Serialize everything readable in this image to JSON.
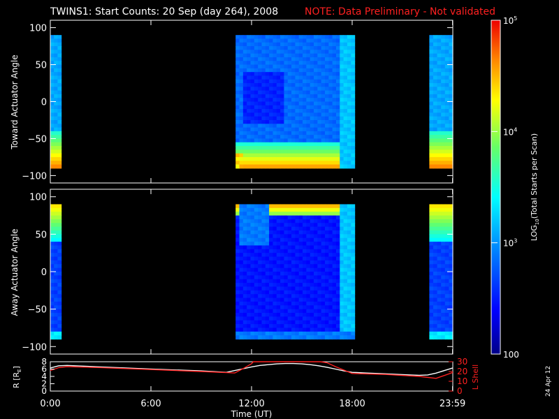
{
  "title": {
    "main": "TWINS1: Start Counts: 20 Sep (day 264), 2008",
    "note": "NOTE: Data Preliminary - Not validated"
  },
  "colors": {
    "note": "#ff2020",
    "lshell": "#ff2020",
    "r_line": "#ffffff",
    "axes": "#ffffff"
  },
  "footer_date": "24 Apr 12",
  "colorbar": {
    "label_prefix": "LOG",
    "label_sub": "10",
    "label_suffix": "(Total Starts per Scan)",
    "tick_labels": [
      "100",
      "10",
      "10",
      "10"
    ],
    "tick_exps": [
      "",
      "3",
      "4",
      "5"
    ],
    "range": [
      100,
      100000
    ],
    "scale": "log"
  },
  "chart_data": [
    {
      "type": "heatmap",
      "ylabel": "Toward Actuator Angle",
      "xlim": [
        0,
        24
      ],
      "ylim": [
        -110,
        110
      ],
      "yticks": [
        "100",
        "50",
        "0",
        "-50",
        "-100"
      ],
      "data_intervals_hours": [
        [
          0,
          0.65
        ],
        [
          11.05,
          18.15
        ],
        [
          22.6,
          24
        ]
      ],
      "color_scale": "LOG10 counts, 100 to 100000"
    },
    {
      "type": "heatmap",
      "ylabel": "Away Actuator Angle",
      "xlim": [
        0,
        24
      ],
      "ylim": [
        -110,
        110
      ],
      "yticks": [
        "100",
        "50",
        "0",
        "-50",
        "-100"
      ],
      "data_intervals_hours": [
        [
          0,
          0.65
        ],
        [
          11.05,
          18.15
        ],
        [
          22.6,
          24
        ]
      ],
      "color_scale": "LOG10 counts, 100 to 100000"
    },
    {
      "type": "line",
      "xlabel": "Time (UT)",
      "xlim": [
        0,
        24
      ],
      "xticks": [
        "0:00",
        "6:00",
        "12:00",
        "18:00",
        "23:59"
      ],
      "ylabel_left": "R [R",
      "ylabel_left_sub": "E",
      "ylabel_left_end": "]",
      "ylim_left": [
        0,
        8
      ],
      "yticks_left": [
        "8",
        "6",
        "4",
        "2",
        "0"
      ],
      "ylabel_right": "L Shell",
      "ylim_right": [
        0,
        30
      ],
      "yticks_right": [
        "30",
        "20",
        "10",
        "0"
      ],
      "series": [
        {
          "axis": "left",
          "x": [
            0,
            0.5,
            1,
            1.5,
            3,
            6,
            9,
            10.5,
            11,
            11.5,
            12,
            12.5,
            13,
            13.5,
            14,
            14.5,
            15,
            15.5,
            16,
            16.5,
            17,
            17.5,
            18,
            19,
            20,
            21,
            22,
            22.5,
            23,
            23.5,
            24
          ],
          "y": [
            6.3,
            6.9,
            7.0,
            6.9,
            6.6,
            6.0,
            5.5,
            5.1,
            5.6,
            6.1,
            6.6,
            7.0,
            7.2,
            7.4,
            7.5,
            7.5,
            7.4,
            7.2,
            6.9,
            6.5,
            6.0,
            5.5,
            5.1,
            4.9,
            4.7,
            4.5,
            4.3,
            4.4,
            4.9,
            5.6,
            6.3
          ]
        },
        {
          "axis": "right",
          "x": [
            0,
            0.5,
            1,
            3,
            6,
            9,
            11,
            11.5,
            12,
            12.1,
            12.5,
            16.1,
            16.5,
            17,
            17.5,
            18,
            20,
            22,
            23,
            24
          ],
          "y": [
            21,
            24,
            25,
            24,
            22,
            20,
            18.5,
            23,
            28,
            31,
            31,
            31,
            29,
            25,
            21.5,
            18,
            17,
            15,
            13,
            19
          ]
        }
      ]
    }
  ]
}
